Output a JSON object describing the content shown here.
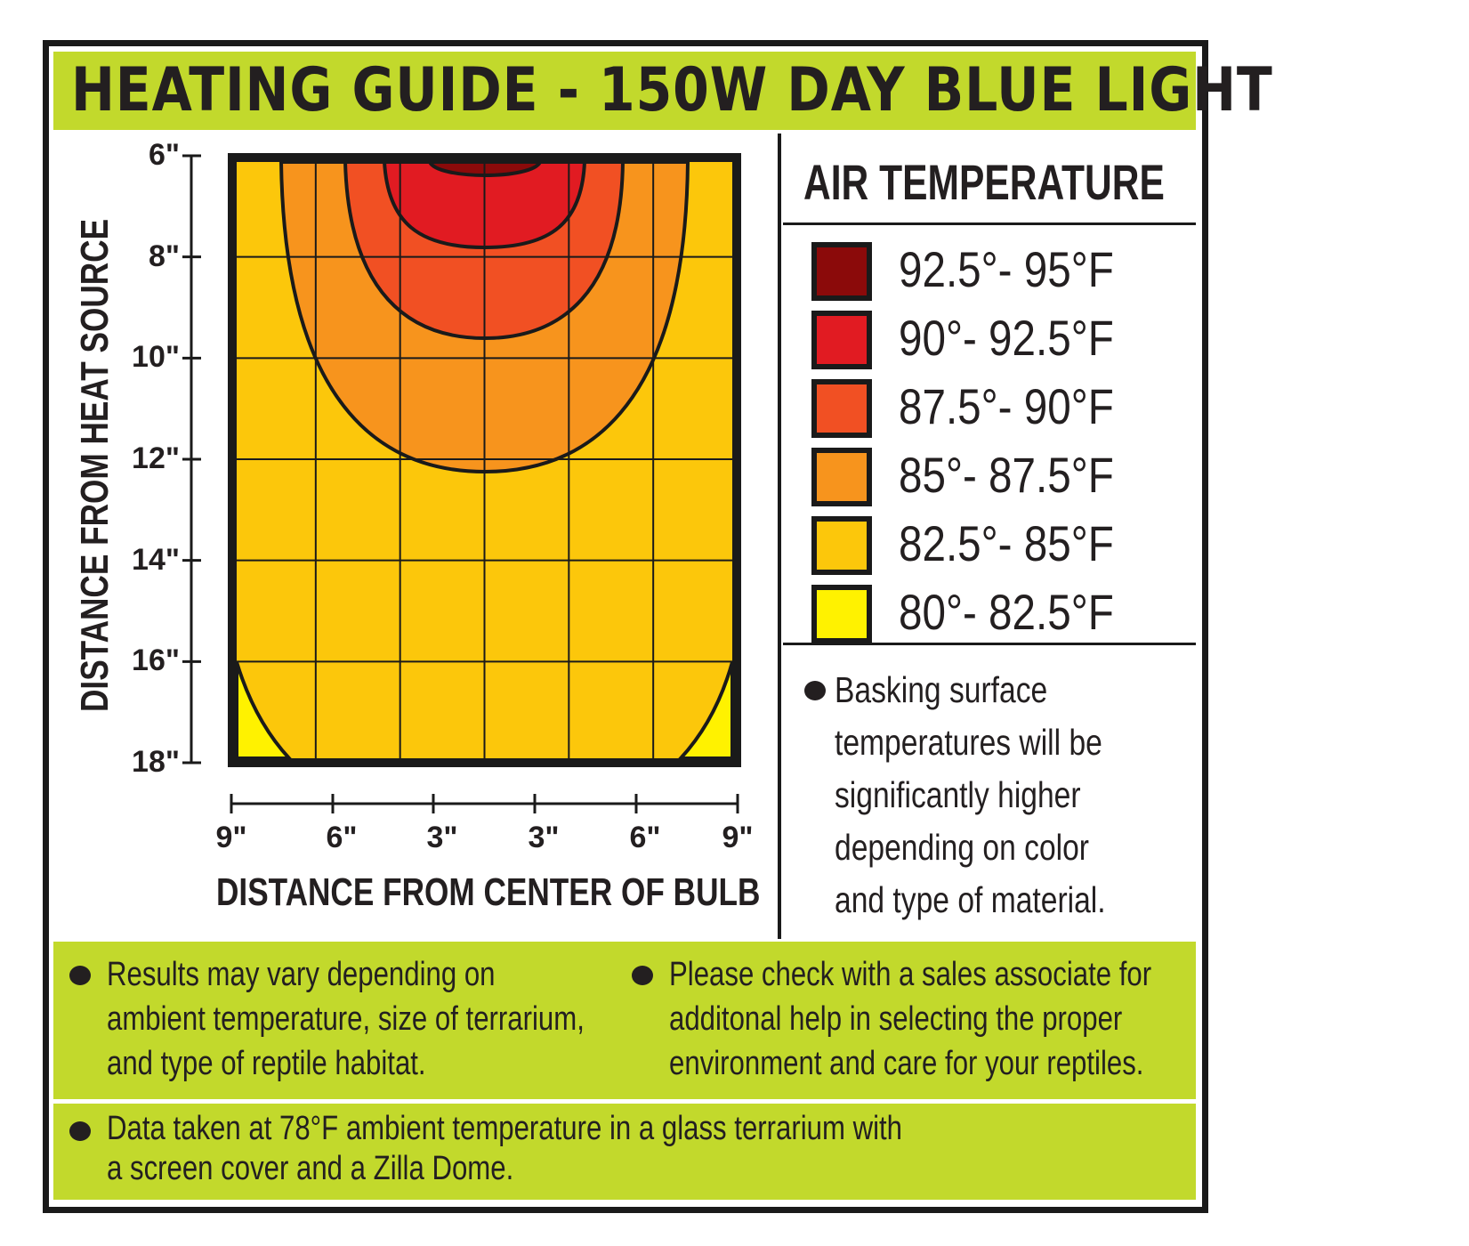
{
  "title": "HEATING GUIDE - 150W DAY BLUE LIGHT",
  "chart_data": {
    "type": "heatmap",
    "xlabel": "DISTANCE FROM CENTER OF BULB",
    "ylabel": "DISTANCE FROM HEAT SOURCE",
    "x_ticks": [
      "9\"",
      "6\"",
      "3\"",
      "3\"",
      "6\"",
      "9\""
    ],
    "y_ticks": [
      "6\"",
      "8\"",
      "10\"",
      "12\"",
      "14\"",
      "16\"",
      "18\""
    ],
    "xlim": [
      -9,
      9
    ],
    "ylim": [
      6,
      18
    ],
    "grid": true,
    "legend_title": "AIR TEMPERATURE",
    "legend_placement": "right",
    "bands": [
      {
        "label": "92.5°- 95°F",
        "color": "#8b0a0a",
        "max_depth_at_center_in": 6.4
      },
      {
        "label": "90°- 92.5°F",
        "color": "#e11b22",
        "max_depth_at_center_in": 7.8
      },
      {
        "label": "87.5°- 90°F",
        "color": "#f15023",
        "max_depth_at_center_in": 9.6
      },
      {
        "label": "85°- 87.5°F",
        "color": "#f7941d",
        "max_depth_at_center_in": 12.2
      },
      {
        "label": "82.5°- 85°F",
        "color": "#fcc70b"
      },
      {
        "label": "80°- 82.5°F",
        "color": "#fff200"
      }
    ]
  },
  "side_note": [
    "Basking surface",
    "temperatures will be",
    "significantly higher",
    "depending on color",
    "and type of material."
  ],
  "footer": {
    "left": [
      "Results may vary depending on",
      "ambient temperature, size of terrarium,",
      "and type of reptile habitat."
    ],
    "right": [
      "Please check with a sales associate for",
      "additonal help in selecting the proper",
      "environment and care for your reptiles."
    ],
    "bottom": [
      "Data taken at 78°F ambient temperature in a glass terrarium with",
      "a screen cover and a Zilla Dome."
    ]
  },
  "colors": {
    "header_green": "#c2d92c",
    "outline": "#1a1a1a"
  }
}
